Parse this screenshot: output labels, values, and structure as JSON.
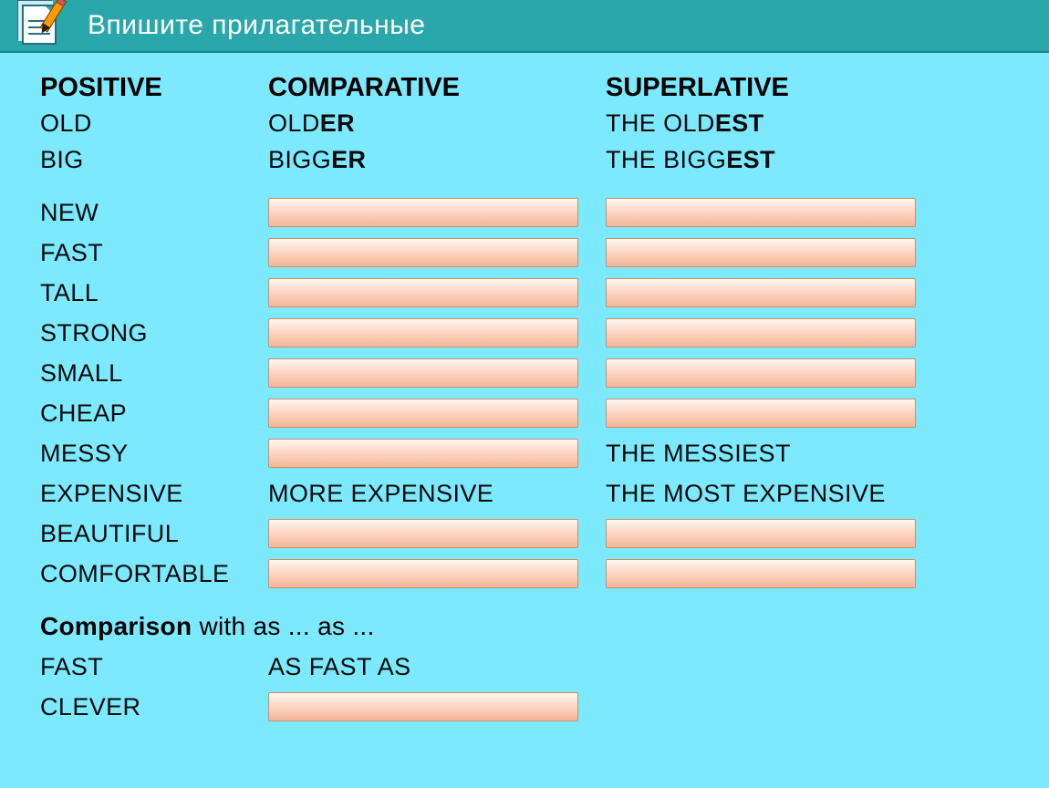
{
  "colors": {
    "header_bg": "#2aa7aa",
    "header_border": "#158285",
    "content_bg": "#7ce9ff",
    "text_main": "#0a0a0a",
    "header_text": "#ffffff",
    "input_border": "#c98f6f",
    "input_grad_top": "#fff6f2",
    "input_grad_mid": "#fbd6c3",
    "input_grad_bot": "#f6b596"
  },
  "title": "Впишите прилагательные",
  "headers": {
    "positive": "Positive",
    "comparative": "Comparative",
    "superlative": "Superlative"
  },
  "examples": [
    {
      "pos": "old",
      "comp_stem": "old",
      "comp_suf": "er",
      "sup_pre": "the old",
      "sup_suf": "est"
    },
    {
      "pos": "big",
      "comp_stem": "bigg",
      "comp_suf": "er",
      "sup_pre": "the bigg",
      "sup_suf": "est"
    }
  ],
  "rows": [
    {
      "pos": "new",
      "comp": "input",
      "sup": "input"
    },
    {
      "pos": "fast",
      "comp": "input",
      "sup": "input"
    },
    {
      "pos": "tall",
      "comp": "input",
      "sup": "input"
    },
    {
      "pos": "strong",
      "comp": "input",
      "sup": "input"
    },
    {
      "pos": "small",
      "comp": "input",
      "sup": "input"
    },
    {
      "pos": "cheap",
      "comp": "input",
      "sup": "input"
    },
    {
      "pos": "messy",
      "comp": "input",
      "sup": "the messiest"
    },
    {
      "pos": "expensive",
      "comp": "more expensive",
      "sup": "the most expensive"
    },
    {
      "pos": "beautiful",
      "comp": "input",
      "sup": "input"
    },
    {
      "pos": "comfortable",
      "comp": "input",
      "sup": "input"
    }
  ],
  "subheader": "Comparison with as ... as ...",
  "asas": [
    {
      "pos": "fast",
      "val": "as fast as"
    },
    {
      "pos": "clever",
      "val": "input"
    }
  ]
}
